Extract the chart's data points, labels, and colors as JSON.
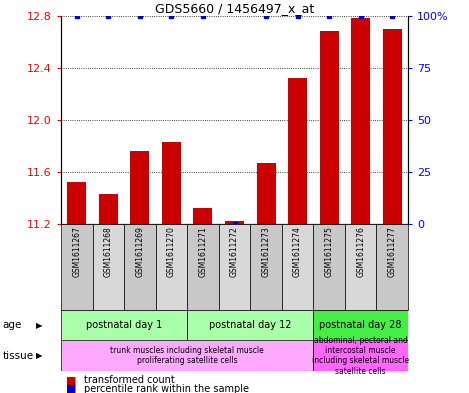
{
  "title": "GDS5660 / 1456497_x_at",
  "samples": [
    "GSM1611267",
    "GSM1611268",
    "GSM1611269",
    "GSM1611270",
    "GSM1611271",
    "GSM1611272",
    "GSM1611273",
    "GSM1611274",
    "GSM1611275",
    "GSM1611276",
    "GSM1611277"
  ],
  "transformed_count": [
    11.52,
    11.43,
    11.76,
    11.83,
    11.32,
    11.22,
    11.67,
    12.32,
    12.68,
    12.78,
    12.7
  ],
  "percentile_rank": [
    100,
    100,
    100,
    100,
    100,
    0,
    100,
    100,
    100,
    100,
    100
  ],
  "ylim_left": [
    11.2,
    12.8
  ],
  "ylim_right": [
    0,
    100
  ],
  "yticks_left": [
    11.2,
    11.6,
    12.0,
    12.4,
    12.8
  ],
  "yticks_right": [
    0,
    25,
    50,
    75,
    100
  ],
  "bar_color": "#cc0000",
  "dot_color": "#0000cc",
  "age_groups": [
    {
      "label": "postnatal day 1",
      "start": 0,
      "end": 4,
      "color": "#aaffaa"
    },
    {
      "label": "postnatal day 12",
      "start": 4,
      "end": 8,
      "color": "#aaffaa"
    },
    {
      "label": "postnatal day 28",
      "start": 8,
      "end": 11,
      "color": "#44ee44"
    }
  ],
  "tissue_groups": [
    {
      "label": "trunk muscles including skeletal muscle\nproliferating satellite cells",
      "start": 0,
      "end": 8,
      "color": "#ffaaff"
    },
    {
      "label": "abdominal, pectoral and\nintercostal muscle\nincluding skeletal muscle\nsatellite cells",
      "start": 8,
      "end": 11,
      "color": "#ff66ff"
    }
  ],
  "legend_items": [
    {
      "color": "#cc0000",
      "label": "transformed count"
    },
    {
      "color": "#0000cc",
      "label": "percentile rank within the sample"
    }
  ],
  "sample_box_colors": [
    "#c8c8c8",
    "#d8d8d8",
    "#c8c8c8",
    "#d8d8d8",
    "#c8c8c8",
    "#d8d8d8",
    "#c8c8c8",
    "#d8d8d8",
    "#c8c8c8",
    "#d8d8d8",
    "#c8c8c8"
  ]
}
